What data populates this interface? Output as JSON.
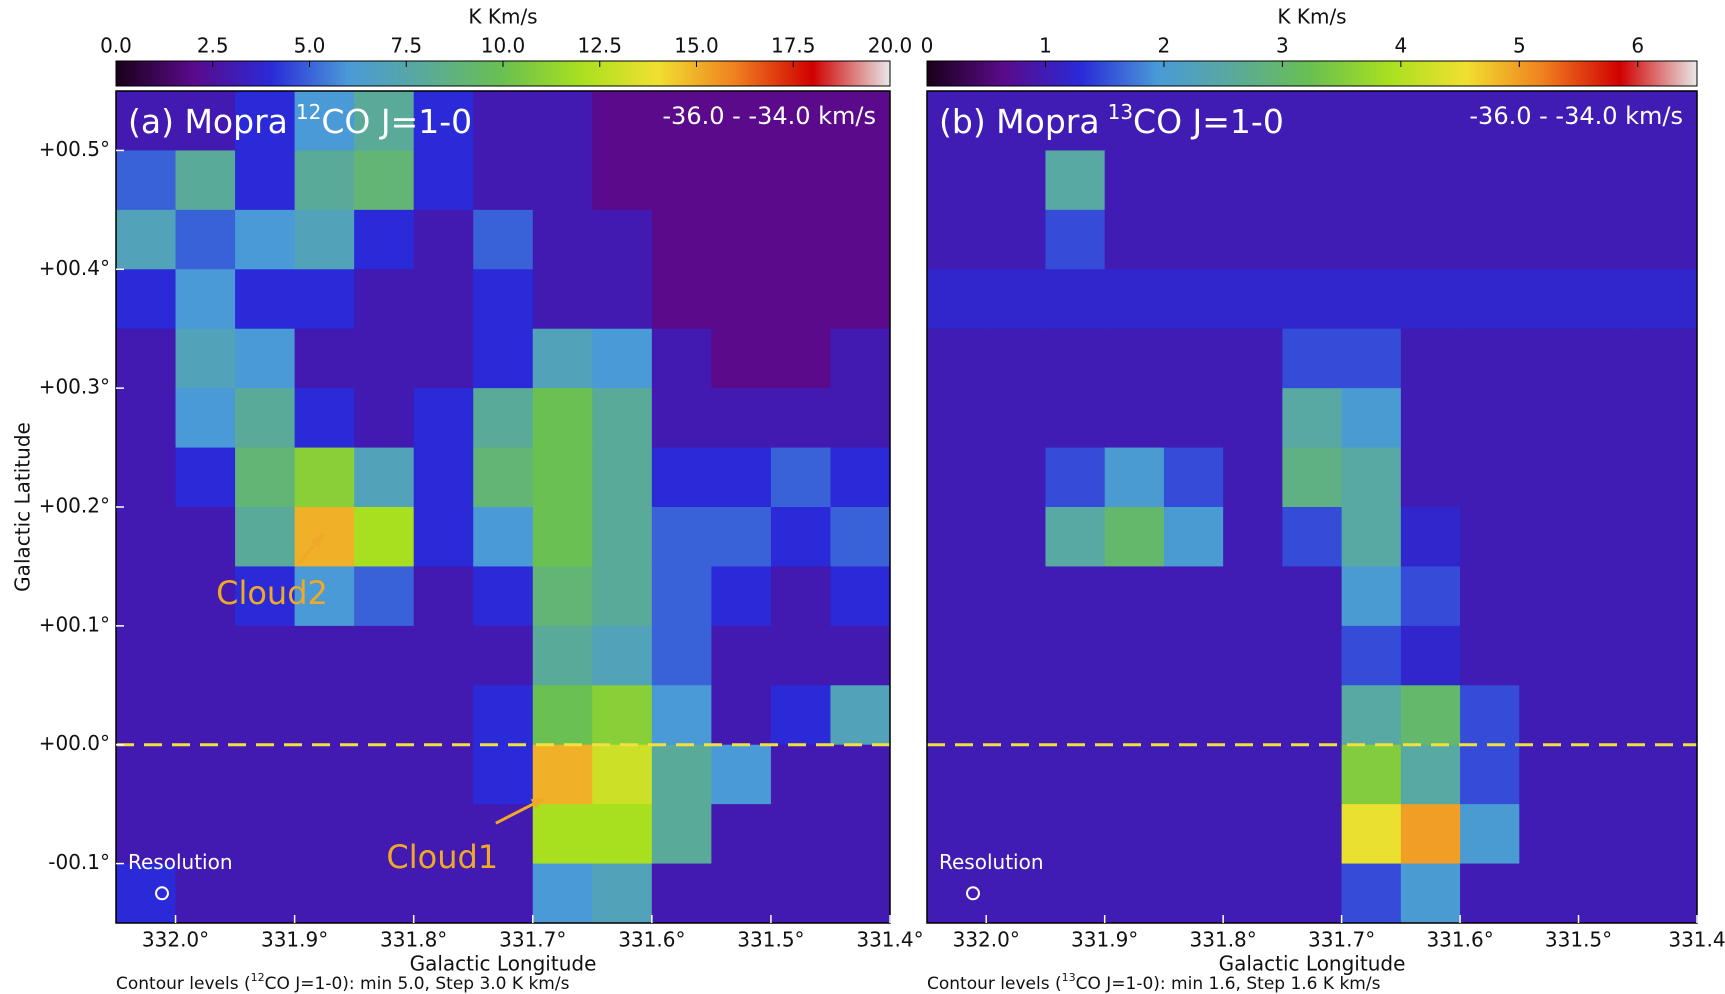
{
  "chart_data": [
    {
      "type": "heatmap",
      "panel_label": {
        "prefix": "(a) Mopra",
        "sup": "12",
        "suffix": "CO J=1-0"
      },
      "velocity_text": "-36.0 - -34.0 km/s",
      "xlabel": "Galactic Longitude",
      "ylabel": "Galactic Latitude",
      "xlim": [
        332.05,
        331.4
      ],
      "ylim": [
        -0.15,
        0.55
      ],
      "xticks": [
        {
          "value": 332.0,
          "label": "332.0°"
        },
        {
          "value": 331.9,
          "label": "331.9°"
        },
        {
          "value": 331.8,
          "label": "331.8°"
        },
        {
          "value": 331.7,
          "label": "331.7°"
        },
        {
          "value": 331.6,
          "label": "331.6°"
        },
        {
          "value": 331.5,
          "label": "331.5°"
        },
        {
          "value": 331.4,
          "label": "331.4°"
        }
      ],
      "yticks": [
        {
          "value": 0.5,
          "label": "+00.5°"
        },
        {
          "value": 0.4,
          "label": "+00.4°"
        },
        {
          "value": 0.3,
          "label": "+00.3°"
        },
        {
          "value": 0.2,
          "label": "+00.2°"
        },
        {
          "value": 0.1,
          "label": "+00.1°"
        },
        {
          "value": 0.0,
          "label": "+00.0°"
        },
        {
          "value": -0.1,
          "label": "-00.1°"
        }
      ],
      "x": [
        332.025,
        331.975,
        331.925,
        331.875,
        331.825,
        331.775,
        331.725,
        331.675,
        331.625,
        331.575,
        331.525,
        331.475,
        331.425
      ],
      "y": [
        0.525,
        0.475,
        0.425,
        0.375,
        0.325,
        0.275,
        0.225,
        0.175,
        0.125,
        0.075,
        0.025,
        -0.025,
        -0.075,
        -0.125
      ],
      "z": [
        [
          3,
          3,
          4,
          6,
          8,
          4,
          3,
          3,
          2,
          2,
          2,
          2,
          2
        ],
        [
          5,
          8,
          4,
          8,
          9,
          4,
          3,
          3,
          2,
          2,
          2,
          2,
          2
        ],
        [
          7,
          5,
          6,
          7,
          4,
          3,
          5,
          3,
          3,
          2,
          2,
          2,
          2
        ],
        [
          4,
          6,
          4,
          4,
          3,
          3,
          4,
          3,
          3,
          2,
          2,
          2,
          2
        ],
        [
          3,
          7,
          6,
          3,
          3,
          3,
          4,
          7,
          6,
          3,
          2,
          2,
          3
        ],
        [
          3,
          6,
          8,
          4,
          3,
          4,
          8,
          10,
          8,
          3,
          3,
          3,
          3
        ],
        [
          3,
          4,
          9,
          11,
          7,
          4,
          9,
          10,
          8,
          4,
          4,
          5,
          4
        ],
        [
          3,
          3,
          8,
          15,
          12,
          4,
          6,
          10,
          8,
          5,
          5,
          4,
          5
        ],
        [
          3,
          3,
          4,
          6,
          5,
          3,
          4,
          9,
          8,
          5,
          4,
          3,
          4
        ],
        [
          3,
          3,
          3,
          3,
          3,
          3,
          3,
          8,
          7,
          5,
          3,
          3,
          3
        ],
        [
          3,
          3,
          3,
          3,
          3,
          3,
          4,
          10,
          11,
          6,
          3,
          4,
          7
        ],
        [
          3,
          3,
          3,
          3,
          3,
          3,
          4,
          15,
          13,
          8,
          6,
          3,
          3
        ],
        [
          3,
          3,
          3,
          3,
          3,
          3,
          3,
          12,
          12,
          8,
          3,
          3,
          3
        ],
        [
          4,
          3,
          3,
          3,
          3,
          3,
          3,
          6,
          7,
          3,
          3,
          3,
          3
        ]
      ],
      "colorbar": {
        "label": "K Km/s",
        "lim": [
          0,
          20
        ],
        "ticks": [
          {
            "value": 0,
            "label": "0.0"
          },
          {
            "value": 2.5,
            "label": "2.5"
          },
          {
            "value": 5,
            "label": "5.0"
          },
          {
            "value": 7.5,
            "label": "7.5"
          },
          {
            "value": 10,
            "label": "10.0"
          },
          {
            "value": 12.5,
            "label": "12.5"
          },
          {
            "value": 15,
            "label": "15.0"
          },
          {
            "value": 17.5,
            "label": "17.5"
          },
          {
            "value": 20,
            "label": "20.0"
          }
        ]
      },
      "colormap": [
        "#1a001a",
        "#5a0a8a",
        "#2a2ad8",
        "#4a9ad8",
        "#5aaa9a",
        "#6ac050",
        "#a8e020",
        "#f0e030",
        "#f08020",
        "#d00000",
        "#e8e8e8"
      ],
      "hline": {
        "value": 0.0,
        "color": "#f0e040"
      },
      "annotations": [
        {
          "text": "Cloud2",
          "x": 331.919,
          "y": 0.126,
          "arrow_from": [
            331.897,
            0.152
          ],
          "arrow_to": [
            331.876,
            0.177
          ],
          "color": "#f0a828"
        },
        {
          "text": "Cloud1",
          "x": 331.776,
          "y": -0.096,
          "arrow_from": [
            331.731,
            -0.066
          ],
          "arrow_to": [
            331.69,
            -0.045
          ],
          "color": "#f0a828"
        }
      ],
      "resolution_text": "Resolution",
      "note": {
        "prefix": "Contour levels (",
        "sup": "12",
        "suffix": "CO J=1-0): min 5.0, Step 3.0 K km/s"
      }
    },
    {
      "type": "heatmap",
      "panel_label": {
        "prefix": "(b) Mopra",
        "sup": "13",
        "suffix": "CO J=1-0"
      },
      "velocity_text": "-36.0 - -34.0 km/s",
      "xlabel": "Galactic Longitude",
      "xlim": [
        332.05,
        331.4
      ],
      "ylim": [
        -0.15,
        0.55
      ],
      "xticks": [
        {
          "value": 332.0,
          "label": "332.0°"
        },
        {
          "value": 331.9,
          "label": "331.9°"
        },
        {
          "value": 331.8,
          "label": "331.8°"
        },
        {
          "value": 331.7,
          "label": "331.7°"
        },
        {
          "value": 331.6,
          "label": "331.6°"
        },
        {
          "value": 331.5,
          "label": "331.5°"
        },
        331.4
      ],
      "x": [
        332.025,
        331.975,
        331.925,
        331.875,
        331.825,
        331.775,
        331.725,
        331.675,
        331.625,
        331.575,
        331.525,
        331.475,
        331.425
      ],
      "y": [
        0.525,
        0.475,
        0.425,
        0.375,
        0.325,
        0.275,
        0.225,
        0.175,
        0.125,
        0.075,
        0.025,
        -0.025,
        -0.075,
        -0.125
      ],
      "z": [
        [
          1,
          1,
          1,
          1,
          1,
          1,
          1,
          1,
          1,
          1,
          1,
          1,
          1
        ],
        [
          1,
          1,
          2.5,
          1,
          1,
          1,
          1,
          1,
          1,
          1,
          1,
          1,
          1
        ],
        [
          1,
          1,
          1.5,
          1,
          1,
          1,
          1,
          1,
          1,
          1,
          1,
          1,
          1
        ],
        [
          1.2,
          1.2,
          1.2,
          1.2,
          1.2,
          1.2,
          1.2,
          1.2,
          1.2,
          1.2,
          1.2,
          1.2,
          1.2
        ],
        [
          1,
          1,
          1,
          1,
          1,
          1,
          1.5,
          1.5,
          1,
          1,
          1,
          1,
          1
        ],
        [
          1,
          1,
          1,
          1,
          1,
          1,
          2.5,
          2,
          1,
          1,
          1,
          1,
          1
        ],
        [
          1,
          1,
          1.5,
          2,
          1.5,
          1,
          2.8,
          2.5,
          1,
          1,
          1,
          1,
          1
        ],
        [
          1,
          1,
          2.5,
          3,
          2,
          1,
          1.5,
          2.5,
          1.2,
          1,
          1,
          1,
          1
        ],
        [
          1,
          1,
          1,
          1,
          1,
          1,
          1,
          2,
          1.5,
          1,
          1,
          1,
          1
        ],
        [
          1,
          1,
          1,
          1,
          1,
          1,
          1,
          1.5,
          1.2,
          1,
          1,
          1,
          1
        ],
        [
          1,
          1,
          1,
          1,
          1,
          1,
          1,
          2.5,
          3,
          1.5,
          1,
          1,
          1
        ],
        [
          1,
          1,
          1,
          1,
          1,
          1,
          1,
          3.5,
          2.5,
          1.5,
          1,
          1,
          1
        ],
        [
          1,
          1,
          1,
          1,
          1,
          1,
          1,
          4.5,
          5,
          2,
          1,
          1,
          1
        ],
        [
          1,
          1,
          1,
          1,
          1,
          1,
          1,
          1.5,
          2,
          1,
          1,
          1,
          1
        ]
      ],
      "colorbar": {
        "label": "K Km/s",
        "lim": [
          0,
          6.5
        ],
        "ticks": [
          0,
          1,
          2,
          3,
          4,
          5,
          6
        ]
      },
      "colormap": [
        "#1a001a",
        "#5a0a8a",
        "#2a2ad8",
        "#4a9ad8",
        "#5aaa9a",
        "#6ac050",
        "#a8e020",
        "#f0e030",
        "#f08020",
        "#d00000",
        "#e8e8e8"
      ],
      "hline": {
        "value": 0.0,
        "color": "#f0e040"
      },
      "resolution_text": "Resolution",
      "note": {
        "prefix": "Contour levels (",
        "sup": "13",
        "suffix": "CO J=1-0): min 1.6, Step 1.6 K km/s"
      }
    }
  ]
}
